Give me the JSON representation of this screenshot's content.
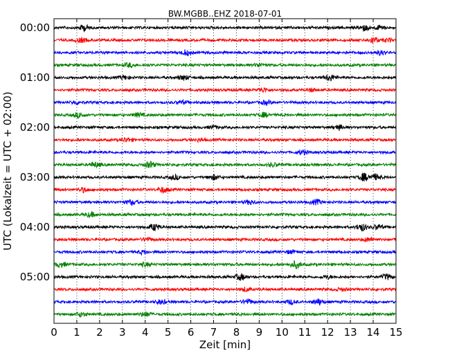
{
  "chart_data": {
    "type": "line",
    "title": "BW.MGBB..EHZ 2018-07-01",
    "xlabel": "Zeit  [min]",
    "ylabel": "UTC (Lokalzeit = UTC + 02:00)",
    "xlim": [
      0,
      15
    ],
    "x_ticks": [
      "0",
      "1",
      "2",
      "3",
      "4",
      "5",
      "6",
      "7",
      "8",
      "9",
      "10",
      "11",
      "12",
      "13",
      "14",
      "15"
    ],
    "y_tick_labels": [
      "00:00",
      "01:00",
      "02:00",
      "03:00",
      "04:00",
      "05:00"
    ],
    "y_tick_rows": [
      0,
      4,
      8,
      12,
      16,
      20
    ],
    "row_count": 24,
    "row_interval_minutes": 15,
    "grid": "vertical dotted",
    "row_colors": [
      "#000000",
      "#ff0000",
      "#0000ff",
      "#008000"
    ],
    "series_events": [
      [
        [
          1.3,
          1.2
        ],
        [
          13.6,
          1.3
        ],
        [
          14.3,
          0.9
        ]
      ],
      [
        [
          1.2,
          0.9
        ],
        [
          14.0,
          1.3
        ],
        [
          14.6,
          0.7
        ]
      ],
      [
        [
          5.8,
          1.1
        ],
        [
          14.3,
          0.9
        ]
      ],
      [
        [
          3.3,
          0.8
        ],
        [
          9.0,
          0.7
        ]
      ],
      [
        [
          3.1,
          0.8
        ],
        [
          5.7,
          1.0
        ],
        [
          12.1,
          1.4
        ]
      ],
      [
        [
          9.2,
          0.8
        ],
        [
          11.3,
          0.6
        ]
      ],
      [
        [
          1.0,
          0.7
        ],
        [
          5.6,
          0.7
        ],
        [
          9.3,
          0.8
        ]
      ],
      [
        [
          1.1,
          1.0
        ],
        [
          3.7,
          0.8
        ],
        [
          9.2,
          0.9
        ]
      ],
      [
        [
          12.5,
          1.0
        ],
        [
          7.0,
          0.6
        ]
      ],
      [
        [
          3.2,
          0.9
        ],
        [
          6.4,
          0.6
        ]
      ],
      [
        [
          10.9,
          0.9
        ]
      ],
      [
        [
          1.8,
          1.0
        ],
        [
          4.2,
          1.3
        ],
        [
          9.6,
          0.7
        ]
      ],
      [
        [
          5.3,
          0.9
        ],
        [
          7.0,
          1.0
        ],
        [
          13.6,
          1.7
        ],
        [
          14.1,
          1.2
        ]
      ],
      [
        [
          1.3,
          0.9
        ],
        [
          4.8,
          1.2
        ]
      ],
      [
        [
          3.4,
          1.0
        ],
        [
          8.6,
          0.9
        ],
        [
          11.5,
          1.0
        ]
      ],
      [
        [
          1.6,
          1.0
        ]
      ],
      [
        [
          4.4,
          1.4
        ],
        [
          13.5,
          1.6
        ],
        [
          14.2,
          1.0
        ]
      ],
      [
        [
          4.1,
          0.7
        ],
        [
          13.8,
          0.8
        ]
      ],
      [
        [
          3.9,
          0.7
        ],
        [
          10.4,
          0.7
        ]
      ],
      [
        [
          0.3,
          1.0
        ],
        [
          10.6,
          1.5
        ],
        [
          4.0,
          0.7
        ]
      ],
      [
        [
          8.2,
          1.3
        ],
        [
          14.6,
          1.1
        ],
        [
          12.0,
          0.6
        ]
      ],
      [
        [
          8.4,
          0.8
        ],
        [
          12.6,
          0.6
        ]
      ],
      [
        [
          4.7,
          0.9
        ],
        [
          8.5,
          1.0
        ],
        [
          11.6,
          1.3
        ],
        [
          10.4,
          0.9
        ]
      ],
      [
        [
          1.2,
          0.9
        ],
        [
          4.0,
          1.0
        ]
      ]
    ]
  }
}
